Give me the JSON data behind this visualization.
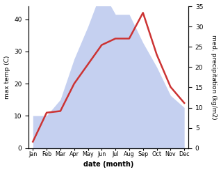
{
  "months": [
    "Jan",
    "Feb",
    "Mar",
    "Apr",
    "May",
    "Jun",
    "Jul",
    "Aug",
    "Sep",
    "Oct",
    "Nov",
    "Dec"
  ],
  "max_temp": [
    2,
    11,
    11.5,
    20,
    26,
    32,
    34,
    34,
    42,
    29,
    19,
    14
  ],
  "precipitation": [
    8,
    8,
    12,
    22,
    30,
    39,
    33,
    33,
    26,
    20,
    13,
    10
  ],
  "temp_color": "#cc3333",
  "precip_fill_color": "#c5d0f0",
  "left_ylabel": "max temp (C)",
  "right_ylabel": "med. precipitation (kg/m2)",
  "xlabel": "date (month)",
  "left_ylim": [
    0,
    44
  ],
  "right_ylim": [
    0,
    35
  ],
  "left_yticks": [
    0,
    10,
    20,
    30,
    40
  ],
  "right_yticks": [
    0,
    5,
    10,
    15,
    20,
    25,
    30,
    35
  ],
  "precip_scale_factor": 1.2571
}
